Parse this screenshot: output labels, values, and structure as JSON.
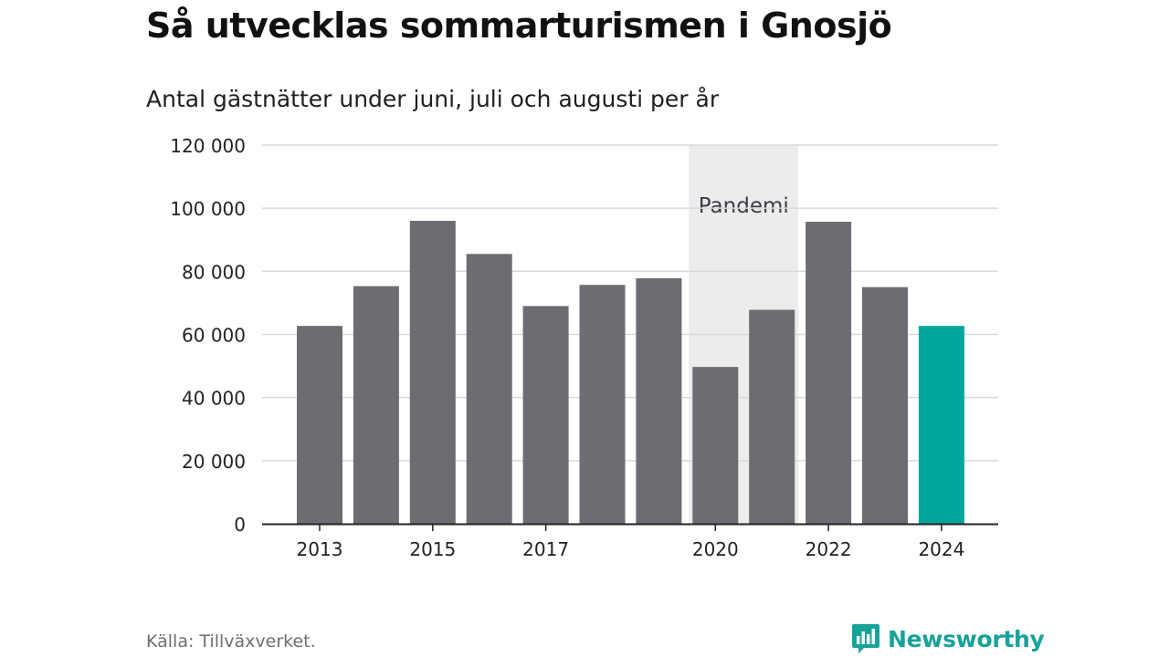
{
  "title": "Så utvecklas sommarturismen i Gnosjö",
  "subtitle": "Antal gästnätter under juni, juli och augusti per år",
  "source": "Källa: Tillväxverket.",
  "brand": "Newsworthy",
  "colors": {
    "bar": "#6d6c72",
    "highlight": "#00a69c",
    "band": "#ececec",
    "grid": "#d9d9d9",
    "axis": "#222222",
    "brand": "#16a39a"
  },
  "chart_data": {
    "type": "bar",
    "title": "Så utvecklas sommarturismen i Gnosjö",
    "subtitle": "Antal gästnätter under juni, juli och augusti per år",
    "categories": [
      "2013",
      "2014",
      "2015",
      "2016",
      "2017",
      "2018",
      "2019",
      "2020",
      "2021",
      "2022",
      "2023",
      "2024"
    ],
    "values": [
      62700,
      75300,
      96000,
      85500,
      69000,
      75700,
      77800,
      49700,
      67800,
      95700,
      75000,
      62700
    ],
    "highlight": "2024",
    "xtick_labels": [
      "2013",
      "2015",
      "2017",
      "2020",
      "2022",
      "2024"
    ],
    "ylim": [
      0,
      120000
    ],
    "yticks": [
      0,
      20000,
      40000,
      60000,
      80000,
      100000,
      120000
    ],
    "ytick_labels": [
      "0",
      "20 000",
      "40 000",
      "60 000",
      "80 000",
      "100 000",
      "120 000"
    ],
    "xlabel": "",
    "ylabel": "",
    "grid": true,
    "annotation": {
      "label": "Pandemi",
      "from": "2020",
      "to": "2021"
    }
  }
}
